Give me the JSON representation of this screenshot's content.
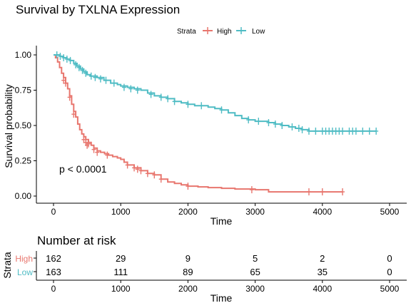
{
  "colors": {
    "high": "#E8766E",
    "low": "#4FBCC4"
  },
  "chart_data": [
    {
      "type": "line",
      "title": "Survival by TXLNA Expression",
      "xlabel": "Time",
      "ylabel": "Survival probability",
      "xlim": [
        0,
        4900
      ],
      "ylim": [
        0,
        1
      ],
      "xticks": [
        "0",
        "1000",
        "2000",
        "3000",
        "4000",
        "5000"
      ],
      "yticks": [
        "0.00",
        "0.25",
        "0.50",
        "0.75",
        "1.00"
      ],
      "legend": {
        "title": "Strata",
        "position": "top"
      },
      "annotation": "p < 0.0001",
      "series": [
        {
          "name": "High",
          "steps": [
            [
              0,
              1.0
            ],
            [
              30,
              0.98
            ],
            [
              60,
              0.95
            ],
            [
              90,
              0.91
            ],
            [
              120,
              0.87
            ],
            [
              150,
              0.84
            ],
            [
              180,
              0.8
            ],
            [
              210,
              0.76
            ],
            [
              240,
              0.71
            ],
            [
              270,
              0.65
            ],
            [
              300,
              0.6
            ],
            [
              330,
              0.56
            ],
            [
              360,
              0.51
            ],
            [
              390,
              0.47
            ],
            [
              420,
              0.44
            ],
            [
              450,
              0.42
            ],
            [
              480,
              0.4
            ],
            [
              520,
              0.38
            ],
            [
              560,
              0.36
            ],
            [
              600,
              0.34
            ],
            [
              650,
              0.32
            ],
            [
              700,
              0.31
            ],
            [
              760,
              0.3
            ],
            [
              820,
              0.29
            ],
            [
              880,
              0.28
            ],
            [
              950,
              0.27
            ],
            [
              1000,
              0.26
            ],
            [
              1050,
              0.24
            ],
            [
              1100,
              0.22
            ],
            [
              1200,
              0.2
            ],
            [
              1300,
              0.18
            ],
            [
              1400,
              0.16
            ],
            [
              1500,
              0.15
            ],
            [
              1600,
              0.12
            ],
            [
              1700,
              0.1
            ],
            [
              1800,
              0.09
            ],
            [
              1900,
              0.08
            ],
            [
              2000,
              0.07
            ],
            [
              2150,
              0.065
            ],
            [
              2300,
              0.06
            ],
            [
              2500,
              0.055
            ],
            [
              2700,
              0.05
            ],
            [
              3000,
              0.045
            ],
            [
              3200,
              0.03
            ],
            [
              4300,
              0.03
            ]
          ],
          "censored": [
            [
              150,
              0.82
            ],
            [
              180,
              0.8
            ],
            [
              240,
              0.7
            ],
            [
              300,
              0.58
            ],
            [
              450,
              0.4
            ],
            [
              480,
              0.38
            ],
            [
              500,
              0.36
            ],
            [
              520,
              0.37
            ],
            [
              600,
              0.33
            ],
            [
              650,
              0.31
            ],
            [
              800,
              0.29
            ],
            [
              1100,
              0.22
            ],
            [
              1200,
              0.2
            ],
            [
              1250,
              0.19
            ],
            [
              1300,
              0.18
            ],
            [
              1400,
              0.16
            ],
            [
              1500,
              0.15
            ],
            [
              1600,
              0.12
            ],
            [
              2000,
              0.07
            ],
            [
              2950,
              0.045
            ],
            [
              3800,
              0.03
            ],
            [
              4000,
              0.03
            ],
            [
              4300,
              0.03
            ]
          ]
        },
        {
          "name": "Low",
          "steps": [
            [
              0,
              1.0
            ],
            [
              100,
              0.99
            ],
            [
              150,
              0.98
            ],
            [
              200,
              0.97
            ],
            [
              250,
              0.96
            ],
            [
              300,
              0.94
            ],
            [
              350,
              0.92
            ],
            [
              400,
              0.9
            ],
            [
              450,
              0.88
            ],
            [
              500,
              0.86
            ],
            [
              550,
              0.85
            ],
            [
              650,
              0.84
            ],
            [
              750,
              0.82
            ],
            [
              850,
              0.8
            ],
            [
              950,
              0.79
            ],
            [
              1000,
              0.78
            ],
            [
              1100,
              0.77
            ],
            [
              1200,
              0.76
            ],
            [
              1300,
              0.75
            ],
            [
              1400,
              0.73
            ],
            [
              1500,
              0.71
            ],
            [
              1600,
              0.7
            ],
            [
              1700,
              0.69
            ],
            [
              1800,
              0.67
            ],
            [
              1900,
              0.66
            ],
            [
              2000,
              0.65
            ],
            [
              2100,
              0.64
            ],
            [
              2300,
              0.63
            ],
            [
              2400,
              0.62
            ],
            [
              2500,
              0.61
            ],
            [
              2600,
              0.59
            ],
            [
              2700,
              0.57
            ],
            [
              2800,
              0.55
            ],
            [
              2900,
              0.54
            ],
            [
              3000,
              0.53
            ],
            [
              3200,
              0.52
            ],
            [
              3300,
              0.51
            ],
            [
              3400,
              0.5
            ],
            [
              3500,
              0.49
            ],
            [
              3600,
              0.48
            ],
            [
              3700,
              0.47
            ],
            [
              3800,
              0.46
            ],
            [
              4800,
              0.46
            ]
          ],
          "censored": [
            [
              50,
              1.0
            ],
            [
              100,
              0.99
            ],
            [
              150,
              0.98
            ],
            [
              200,
              0.97
            ],
            [
              250,
              0.96
            ],
            [
              330,
              0.93
            ],
            [
              380,
              0.91
            ],
            [
              430,
              0.89
            ],
            [
              480,
              0.87
            ],
            [
              560,
              0.85
            ],
            [
              620,
              0.84
            ],
            [
              700,
              0.83
            ],
            [
              780,
              0.82
            ],
            [
              900,
              0.8
            ],
            [
              1050,
              0.77
            ],
            [
              1150,
              0.76
            ],
            [
              1250,
              0.75
            ],
            [
              1450,
              0.72
            ],
            [
              1600,
              0.7
            ],
            [
              1700,
              0.69
            ],
            [
              1800,
              0.67
            ],
            [
              2000,
              0.65
            ],
            [
              2200,
              0.64
            ],
            [
              2500,
              0.61
            ],
            [
              2900,
              0.54
            ],
            [
              3050,
              0.53
            ],
            [
              3200,
              0.52
            ],
            [
              3300,
              0.51
            ],
            [
              3400,
              0.5
            ],
            [
              3550,
              0.49
            ],
            [
              3650,
              0.48
            ],
            [
              3700,
              0.47
            ],
            [
              3800,
              0.46
            ],
            [
              3900,
              0.46
            ],
            [
              4000,
              0.46
            ],
            [
              4050,
              0.46
            ],
            [
              4100,
              0.46
            ],
            [
              4150,
              0.46
            ],
            [
              4200,
              0.46
            ],
            [
              4250,
              0.46
            ],
            [
              4300,
              0.46
            ],
            [
              4400,
              0.46
            ],
            [
              4450,
              0.46
            ],
            [
              4500,
              0.46
            ],
            [
              4600,
              0.46
            ],
            [
              4700,
              0.46
            ],
            [
              4800,
              0.46
            ]
          ]
        }
      ]
    },
    {
      "type": "table",
      "title": "Number at risk",
      "xlabel": "Time",
      "ylabel": "Strata",
      "xticks": [
        "0",
        "1000",
        "2000",
        "3000",
        "4000",
        "5000"
      ],
      "rows": [
        {
          "name": "High",
          "values": [
            "162",
            "29",
            "9",
            "5",
            "2",
            "0"
          ]
        },
        {
          "name": "Low",
          "values": [
            "163",
            "111",
            "89",
            "65",
            "35",
            "0"
          ]
        }
      ]
    }
  ]
}
